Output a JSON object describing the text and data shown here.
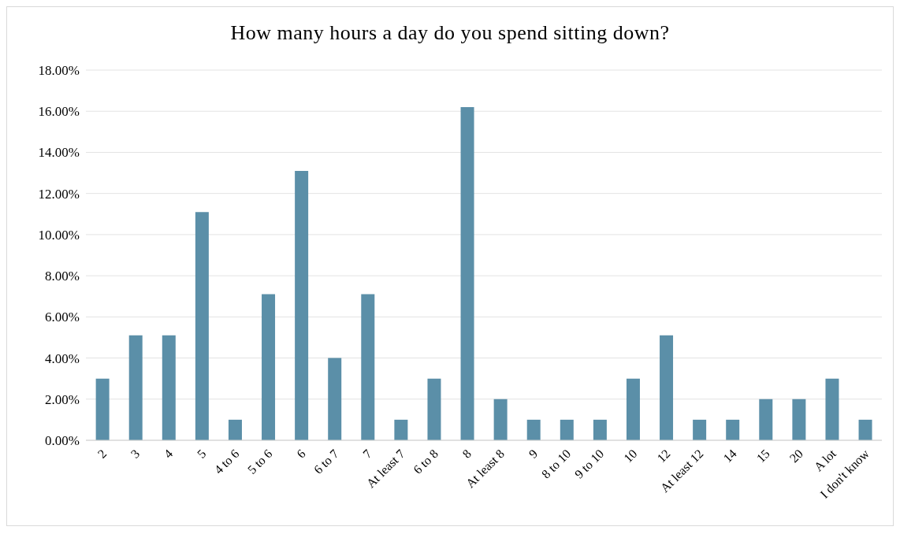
{
  "chart_data": {
    "type": "bar",
    "title": "How many hours a day do you spend sitting down?",
    "categories": [
      "2",
      "3",
      "4",
      "5",
      "4 to 6",
      "5 to 6",
      "6",
      "6 to 7",
      "7",
      "At least 7",
      "6 to 8",
      "8",
      "At least 8",
      "9",
      "8 to 10",
      "9 to 10",
      "10",
      "12",
      "At least 12",
      "14",
      "15",
      "20",
      "A lot",
      "I don't know"
    ],
    "values": [
      3.0,
      5.1,
      5.1,
      11.1,
      1.0,
      7.1,
      13.1,
      4.0,
      7.1,
      1.0,
      3.0,
      16.2,
      2.0,
      1.0,
      1.0,
      1.0,
      3.0,
      5.1,
      1.0,
      1.0,
      2.0,
      2.0,
      3.0,
      1.0
    ],
    "color": "#5b8fa8",
    "ylim": [
      0,
      18
    ],
    "yticks": [
      {
        "value": 0,
        "label": "0.00%"
      },
      {
        "value": 2,
        "label": "2.00%"
      },
      {
        "value": 4,
        "label": "4.00%"
      },
      {
        "value": 6,
        "label": "6.00%"
      },
      {
        "value": 8,
        "label": "8.00%"
      },
      {
        "value": 10,
        "label": "10.00%"
      },
      {
        "value": 12,
        "label": "12.00%"
      },
      {
        "value": 14,
        "label": "14.00%"
      },
      {
        "value": 16,
        "label": "16.00%"
      },
      {
        "value": 18,
        "label": "18.00%"
      }
    ],
    "grid": "y"
  }
}
